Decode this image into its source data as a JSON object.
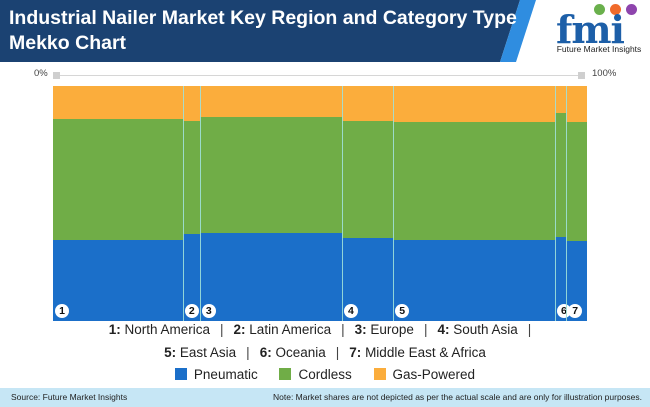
{
  "header": {
    "title": "Industrial Nailer Market Key Region and Category Type Mekko Chart",
    "bg_color": "#1b4272",
    "accent_color": "#2f8de0"
  },
  "logo": {
    "letters": "fmi",
    "tagline": "Future Market Insights",
    "dot_colors": [
      "#6ab04c",
      "#f06a2a",
      "#8e44ad"
    ]
  },
  "axis": {
    "left_label": "0%",
    "right_label": "100%"
  },
  "chart_data": {
    "type": "mekko",
    "title": "Industrial Nailer Market Key Region and Category Type Mekko Chart",
    "xlabel": "",
    "ylabel": "",
    "x_axis_labels": [
      "0%",
      "100%"
    ],
    "categories": [
      "1",
      "2",
      "3",
      "4",
      "5",
      "6",
      "7"
    ],
    "category_names": [
      "North America",
      "Latin America",
      "Europe",
      "South Asia",
      "East Asia",
      "Oceania",
      "Middle East & Africa"
    ],
    "widths_pct": [
      24.3,
      3.2,
      26.6,
      9.6,
      30.3,
      2.1,
      3.9
    ],
    "series": [
      {
        "name": "Pneumatic",
        "color": "#1b6fc9",
        "values": [
          34.5,
          37.0,
          37.5,
          35.3,
          34.5,
          35.7,
          34.0
        ]
      },
      {
        "name": "Cordless",
        "color": "#70ad47",
        "values": [
          51.5,
          48.1,
          49.3,
          49.8,
          50.2,
          52.8,
          50.7
        ]
      },
      {
        "name": "Gas-Powered",
        "color": "#fbad3c",
        "values": [
          14.0,
          14.9,
          13.2,
          14.9,
          15.3,
          11.5,
          15.3
        ]
      }
    ],
    "ylim": [
      0,
      100
    ],
    "grid": false,
    "legend_position": "bottom"
  },
  "regions": [
    {
      "num": "1:",
      "name": "North America"
    },
    {
      "num": "2:",
      "name": "Latin America"
    },
    {
      "num": "3:",
      "name": "Europe"
    },
    {
      "num": "4:",
      "name": "South Asia"
    },
    {
      "num": "5:",
      "name": "East Asia"
    },
    {
      "num": "6:",
      "name": "Oceania"
    },
    {
      "num": "7:",
      "name": "Middle East & Africa"
    }
  ],
  "separator": "|",
  "legend": [
    {
      "label": "Pneumatic",
      "color": "#1b6fc9"
    },
    {
      "label": "Cordless",
      "color": "#70ad47"
    },
    {
      "label": "Gas-Powered",
      "color": "#fbad3c"
    }
  ],
  "footer": {
    "source": "Source: Future Market Insights",
    "note": "Note: Market shares are not depicted as per the actual scale and are only for illustration purposes."
  }
}
